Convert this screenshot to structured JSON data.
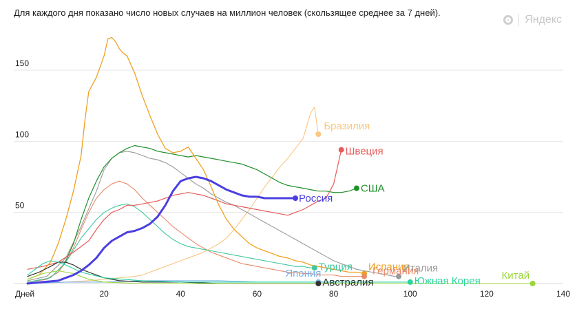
{
  "caption": "Для каждого дня показано число новых случаев на миллион человек (скользящее среднее за 7 дней).",
  "logo_text": "Яндекс",
  "chart_data": {
    "type": "line",
    "title": "Для каждого дня показано число новых случаев на миллион человек (скользящее среднее за 7 дней).",
    "xlabel": "Дней",
    "ylabel": "",
    "xlim": [
      0,
      140
    ],
    "ylim": [
      0,
      180
    ],
    "x_ticks": [
      20,
      40,
      60,
      80,
      100,
      120,
      140
    ],
    "y_ticks": [
      50,
      100,
      150
    ],
    "grid": true,
    "series": [
      {
        "name": "Испания",
        "color": "#f0a01e",
        "width": 1.3,
        "x": [
          0,
          3,
          6,
          8,
          10,
          12,
          14,
          15,
          16,
          18,
          20,
          21,
          22,
          23,
          24,
          25,
          26,
          28,
          30,
          32,
          34,
          36,
          38,
          40,
          42,
          44,
          46,
          48,
          50,
          52,
          54,
          56,
          58,
          60,
          62,
          64,
          66,
          68,
          70,
          72,
          74,
          76,
          78,
          80,
          82,
          84,
          86,
          88
        ],
        "y": [
          3,
          6,
          15,
          28,
          45,
          65,
          90,
          115,
          135,
          145,
          160,
          172,
          173,
          170,
          165,
          162,
          160,
          148,
          132,
          118,
          105,
          95,
          92,
          93,
          96,
          88,
          80,
          68,
          55,
          45,
          38,
          33,
          28,
          25,
          23,
          21,
          19,
          18,
          16,
          15,
          13,
          12,
          11,
          10,
          9,
          8,
          8,
          7
        ]
      },
      {
        "name": "Италия",
        "color": "#999999",
        "width": 1.1,
        "x": [
          0,
          5,
          10,
          14,
          18,
          20,
          22,
          24,
          26,
          28,
          30,
          32,
          34,
          36,
          38,
          40,
          42,
          44,
          46,
          48,
          50,
          52,
          54,
          56,
          58,
          60,
          62,
          64,
          66,
          68,
          70,
          72,
          74,
          76,
          78,
          80,
          82,
          84,
          86,
          88,
          90,
          92,
          94,
          96,
          97
        ],
        "y": [
          2,
          5,
          18,
          40,
          65,
          80,
          88,
          92,
          93,
          92,
          90,
          88,
          87,
          85,
          82,
          78,
          74,
          70,
          67,
          63,
          60,
          57,
          55,
          52,
          49,
          46,
          43,
          40,
          37,
          34,
          31,
          28,
          25,
          22,
          19,
          16,
          14,
          12,
          10,
          9,
          8,
          7,
          6,
          5,
          5
        ]
      },
      {
        "name": "США",
        "color": "#1f8f2a",
        "width": 1.2,
        "x": [
          0,
          5,
          8,
          10,
          12,
          14,
          16,
          18,
          20,
          22,
          24,
          26,
          28,
          30,
          32,
          34,
          36,
          38,
          40,
          42,
          44,
          46,
          48,
          50,
          52,
          54,
          56,
          58,
          60,
          62,
          64,
          66,
          68,
          70,
          72,
          74,
          76,
          78,
          80,
          82,
          84,
          86
        ],
        "y": [
          1,
          3,
          8,
          16,
          28,
          45,
          60,
          72,
          82,
          88,
          92,
          95,
          97,
          96,
          95,
          93,
          92,
          91,
          90,
          89,
          90,
          89,
          88,
          87,
          86,
          85,
          84,
          82,
          80,
          77,
          74,
          71,
          69,
          68,
          67,
          66,
          65,
          65,
          64,
          64,
          65,
          67
        ]
      },
      {
        "name": "Германия",
        "color": "#e88a6a",
        "width": 1.1,
        "x": [
          0,
          5,
          8,
          10,
          12,
          14,
          16,
          18,
          20,
          22,
          24,
          26,
          28,
          30,
          32,
          34,
          36,
          38,
          40,
          42,
          44,
          46,
          48,
          50,
          52,
          54,
          56,
          58,
          60,
          62,
          64,
          66,
          68,
          70,
          72,
          74,
          76,
          78,
          80,
          82,
          84,
          86,
          88
        ],
        "y": [
          1,
          3,
          8,
          15,
          25,
          38,
          50,
          60,
          66,
          70,
          72,
          70,
          66,
          60,
          55,
          50,
          45,
          40,
          36,
          32,
          28,
          25,
          22,
          20,
          18,
          16,
          14,
          13,
          12,
          11,
          10,
          9,
          8,
          8,
          7,
          7,
          6,
          6,
          6,
          5,
          5,
          5,
          5
        ]
      },
      {
        "name": "Турция",
        "color": "#3fc8a0",
        "width": 1.1,
        "x": [
          0,
          6,
          10,
          14,
          18,
          20,
          22,
          24,
          26,
          28,
          30,
          32,
          34,
          36,
          38,
          40,
          42,
          44,
          46,
          48,
          50,
          52,
          54,
          56,
          58,
          60,
          62,
          64,
          66,
          68,
          70,
          72,
          74,
          75
        ],
        "y": [
          1,
          4,
          15,
          32,
          45,
          50,
          53,
          55,
          56,
          54,
          50,
          45,
          40,
          35,
          31,
          28,
          26,
          25,
          24,
          23,
          22,
          21,
          20,
          19,
          18,
          17,
          16,
          15,
          14,
          13,
          12,
          12,
          11,
          11
        ]
      },
      {
        "name": "Швеция",
        "color": "#e85b5b",
        "width": 1.2,
        "x": [
          0,
          4,
          8,
          12,
          16,
          18,
          20,
          22,
          24,
          26,
          28,
          30,
          32,
          34,
          36,
          38,
          40,
          42,
          44,
          46,
          48,
          50,
          52,
          54,
          56,
          58,
          60,
          62,
          64,
          66,
          68,
          70,
          72,
          74,
          76,
          78,
          80,
          82
        ],
        "y": [
          10,
          12,
          15,
          22,
          30,
          38,
          45,
          50,
          52,
          55,
          55,
          56,
          57,
          58,
          60,
          62,
          63,
          64,
          63,
          62,
          60,
          58,
          56,
          55,
          54,
          53,
          52,
          51,
          50,
          49,
          48,
          50,
          52,
          55,
          58,
          60,
          70,
          94
        ]
      },
      {
        "name": "Бразилия",
        "color": "#f8c780",
        "width": 1.1,
        "x": [
          0,
          10,
          16,
          20,
          24,
          28,
          30,
          32,
          34,
          36,
          38,
          40,
          42,
          44,
          46,
          48,
          50,
          52,
          54,
          56,
          58,
          60,
          62,
          64,
          66,
          68,
          70,
          72,
          74,
          75,
          76
        ],
        "y": [
          0,
          1,
          2,
          3,
          4,
          5,
          6,
          8,
          10,
          12,
          14,
          16,
          18,
          20,
          22,
          25,
          28,
          32,
          38,
          45,
          52,
          60,
          68,
          75,
          82,
          88,
          95,
          102,
          120,
          124,
          105
        ]
      },
      {
        "name": "Россия",
        "color": "#4a3fe0",
        "width": 3,
        "x": [
          0,
          4,
          8,
          10,
          12,
          14,
          16,
          18,
          20,
          22,
          24,
          26,
          28,
          30,
          32,
          34,
          36,
          38,
          40,
          42,
          44,
          46,
          48,
          50,
          52,
          54,
          56,
          58,
          60,
          62,
          64,
          66,
          68,
          70
        ],
        "y": [
          0,
          1,
          2,
          4,
          6,
          9,
          13,
          18,
          25,
          30,
          33,
          36,
          37,
          39,
          42,
          47,
          55,
          65,
          72,
          74,
          75,
          74,
          72,
          69,
          66,
          64,
          62,
          61,
          61,
          60,
          60,
          60,
          60,
          60
        ]
      },
      {
        "name": "Япония",
        "color": "#7ab0e8",
        "width": 1.1,
        "x": [
          0,
          10,
          20,
          30,
          40,
          50,
          60,
          70,
          76
        ],
        "y": [
          0,
          1,
          1,
          2,
          2,
          2,
          1,
          1,
          1
        ]
      },
      {
        "name": "Австралия",
        "color": "#333333",
        "width": 1.2,
        "x": [
          0,
          3,
          6,
          8,
          10,
          12,
          14,
          16,
          18,
          20,
          24,
          30,
          40,
          50,
          60,
          70,
          76
        ],
        "y": [
          5,
          8,
          12,
          15,
          15,
          13,
          10,
          8,
          6,
          4,
          2,
          1,
          1,
          0,
          0,
          0,
          0
        ]
      },
      {
        "name": "Южная Корея",
        "color": "#2ad4a0",
        "width": 1.1,
        "x": [
          0,
          2,
          4,
          6,
          8,
          10,
          14,
          20,
          30,
          40,
          60,
          80,
          100
        ],
        "y": [
          6,
          10,
          14,
          16,
          15,
          13,
          8,
          4,
          2,
          1,
          1,
          1,
          1
        ]
      },
      {
        "name": "Китай",
        "color": "#9ad63a",
        "width": 1.1,
        "x": [
          0,
          2,
          4,
          6,
          8,
          10,
          12,
          14,
          16,
          20,
          30,
          60,
          100,
          132
        ],
        "y": [
          3,
          5,
          7,
          8,
          9,
          8,
          7,
          5,
          3,
          1,
          0,
          0,
          0,
          0
        ]
      }
    ],
    "end_labels": [
      "Бразилия",
      "Швеция",
      "США",
      "Россия",
      "Турция",
      "Испания",
      "Италия",
      "Япония",
      "Австралия",
      "Германия",
      "Южная Корея",
      "Китай"
    ]
  }
}
